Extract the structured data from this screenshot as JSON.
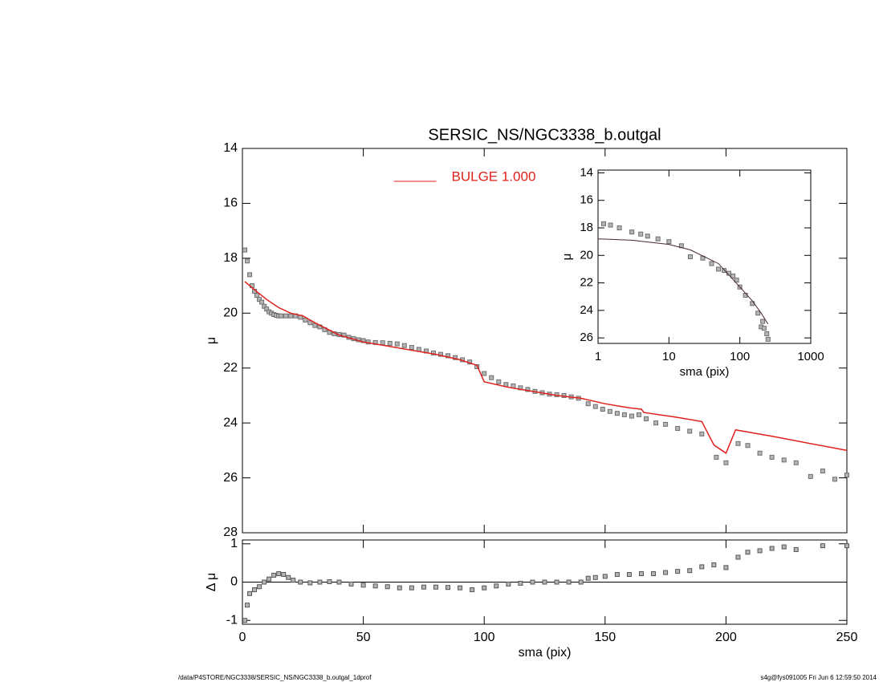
{
  "chart_data": [
    {
      "type": "scatter",
      "title": "SERSIC_NS/NGC3338_b.outgal",
      "y_label": "μ",
      "xlim": [
        0,
        250
      ],
      "xticks": [
        0,
        50,
        100,
        150,
        200,
        250
      ],
      "xtick_labels": false,
      "ylim": [
        28,
        14
      ],
      "yticks": [
        14,
        16,
        18,
        20,
        22,
        24,
        26,
        28
      ],
      "legend": "upper center",
      "series": [
        {
          "mode": "markers",
          "color": "#6e6e6e",
          "x": [
            1,
            2,
            3,
            4,
            5,
            6,
            7,
            8,
            9,
            10,
            11,
            12,
            13,
            14,
            15,
            16,
            18,
            20,
            22,
            24,
            26,
            28,
            30,
            32,
            34,
            36,
            38,
            40,
            42,
            44,
            46,
            48,
            50,
            52,
            55,
            58,
            61,
            64,
            67,
            70,
            73,
            76,
            79,
            82,
            85,
            88,
            91,
            94,
            97,
            100,
            103,
            106,
            109,
            112,
            115,
            118,
            121,
            124,
            127,
            130,
            133,
            136,
            139,
            143,
            146,
            149,
            152,
            155,
            158,
            161,
            164,
            167,
            171,
            175,
            180,
            185,
            190,
            196,
            200,
            205,
            209,
            214,
            219,
            224,
            229,
            235,
            240,
            245,
            250
          ],
          "values": [
            17.7,
            18.1,
            18.6,
            19.0,
            19.2,
            19.35,
            19.5,
            19.6,
            19.75,
            19.85,
            19.95,
            20.0,
            20.05,
            20.08,
            20.1,
            20.1,
            20.1,
            20.1,
            20.1,
            20.15,
            20.25,
            20.35,
            20.45,
            20.5,
            20.6,
            20.7,
            20.75,
            20.78,
            20.8,
            20.88,
            20.93,
            20.97,
            21.0,
            21.05,
            21.07,
            21.08,
            21.1,
            21.12,
            21.18,
            21.25,
            21.32,
            21.38,
            21.45,
            21.5,
            21.55,
            21.62,
            21.7,
            21.78,
            21.95,
            22.2,
            22.35,
            22.5,
            22.6,
            22.65,
            22.72,
            22.78,
            22.85,
            22.9,
            22.95,
            22.97,
            23.0,
            23.05,
            23.1,
            23.3,
            23.4,
            23.5,
            23.58,
            23.65,
            23.7,
            23.75,
            23.7,
            23.85,
            24.0,
            24.05,
            24.2,
            24.3,
            24.4,
            25.25,
            25.45,
            24.75,
            24.82,
            25.1,
            25.25,
            25.35,
            25.45,
            25.95,
            25.75,
            26.05,
            25.9
          ]
        },
        {
          "mode": "lines",
          "name": "BULGE  1.000",
          "color": "#e0201b",
          "x": [
            1,
            5,
            10,
            15,
            20,
            25,
            30,
            40,
            50,
            60,
            70,
            80,
            90,
            97,
            100,
            110,
            120,
            130,
            140,
            150,
            160,
            165,
            166,
            180,
            190,
            195,
            200,
            204,
            220,
            250
          ],
          "values": [
            18.85,
            19.15,
            19.5,
            19.8,
            20.0,
            20.1,
            20.35,
            20.8,
            21.05,
            21.2,
            21.35,
            21.5,
            21.7,
            21.9,
            22.5,
            22.7,
            22.85,
            23.0,
            23.1,
            23.3,
            23.45,
            23.5,
            23.62,
            23.8,
            23.95,
            24.8,
            25.1,
            24.25,
            24.5,
            25.0
          ]
        }
      ]
    },
    {
      "type": "scatter",
      "x_label": "sma (pix)",
      "y_label": "Δ μ",
      "xlim": [
        0,
        250
      ],
      "xticks": [
        0,
        50,
        100,
        150,
        200,
        250
      ],
      "ylim": [
        -1.1,
        1.1
      ],
      "yticks": [
        -1,
        0,
        1
      ],
      "reference_line": 0,
      "series": [
        {
          "mode": "markers",
          "color": "#555555",
          "x": [
            1,
            2,
            3,
            5,
            7,
            9,
            11,
            13,
            15,
            17,
            19,
            21,
            24,
            28,
            32,
            36,
            40,
            45,
            50,
            55,
            60,
            65,
            70,
            75,
            80,
            85,
            90,
            95,
            100,
            105,
            110,
            115,
            120,
            125,
            130,
            135,
            140,
            143,
            146,
            150,
            155,
            160,
            165,
            170,
            175,
            180,
            185,
            190,
            195,
            200,
            205,
            209,
            214,
            219,
            224,
            229,
            240,
            250
          ],
          "values": [
            -1.0,
            -0.6,
            -0.3,
            -0.2,
            -0.12,
            0.0,
            0.08,
            0.18,
            0.22,
            0.2,
            0.12,
            0.05,
            0.0,
            -0.02,
            0.0,
            0.01,
            0.0,
            -0.05,
            -0.08,
            -0.1,
            -0.12,
            -0.15,
            -0.15,
            -0.13,
            -0.13,
            -0.14,
            -0.15,
            -0.2,
            -0.15,
            -0.1,
            -0.05,
            -0.03,
            0.0,
            0.0,
            0.0,
            0.0,
            0.0,
            0.1,
            0.12,
            0.15,
            0.2,
            0.2,
            0.22,
            0.22,
            0.25,
            0.28,
            0.3,
            0.4,
            0.45,
            0.38,
            0.65,
            0.78,
            0.82,
            0.88,
            0.92,
            0.85,
            0.95,
            0.95
          ]
        }
      ]
    },
    {
      "type": "scatter",
      "x_label": "sma (pix)",
      "y_label": "μ",
      "xlog": true,
      "xlim": [
        1,
        1000
      ],
      "xticks": [
        1,
        10,
        100,
        1000
      ],
      "ylim": [
        26.4,
        13.8
      ],
      "yticks": [
        14,
        16,
        18,
        20,
        22,
        24,
        26
      ],
      "series": [
        {
          "mode": "markers",
          "color": "#6e6e6e",
          "x": [
            1.2,
            1.5,
            2,
            3,
            4,
            5,
            7,
            10,
            15,
            20,
            30,
            40,
            50,
            60,
            70,
            80,
            90,
            100,
            120,
            150,
            180,
            200,
            210,
            220,
            240,
            250
          ],
          "values": [
            17.7,
            17.8,
            18.0,
            18.3,
            18.45,
            18.6,
            18.8,
            19.0,
            19.3,
            20.1,
            20.2,
            20.6,
            21.0,
            21.1,
            21.3,
            21.5,
            21.8,
            22.3,
            22.9,
            23.5,
            24.2,
            25.2,
            24.8,
            25.3,
            25.7,
            26.1
          ]
        },
        {
          "mode": "lines",
          "color": "#4a2a2a",
          "x": [
            1,
            3,
            10,
            20,
            50,
            100,
            150,
            200,
            250
          ],
          "values": [
            18.8,
            18.9,
            19.2,
            19.6,
            20.6,
            22.3,
            23.3,
            24.2,
            25.0
          ]
        }
      ]
    }
  ],
  "footer": {
    "left": "/data/P4STORE/NGC3338/SERSIC_NS/NGC3338_b.outgal_1dprof",
    "right": "s4g@fys091005  Fri Jun  6 12:59:50 2014"
  }
}
